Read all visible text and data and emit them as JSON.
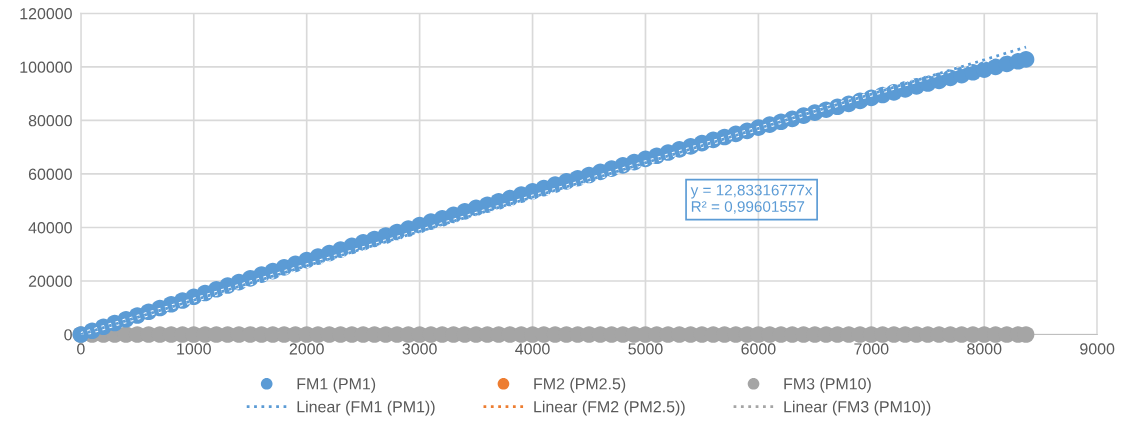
{
  "chart_data": {
    "type": "scatter",
    "x": [
      0,
      100,
      200,
      300,
      400,
      500,
      600,
      700,
      800,
      900,
      1000,
      1100,
      1200,
      1300,
      1400,
      1500,
      1600,
      1700,
      1800,
      1900,
      2000,
      2100,
      2200,
      2300,
      2400,
      2500,
      2600,
      2700,
      2800,
      2900,
      3000,
      3100,
      3200,
      3300,
      3400,
      3500,
      3600,
      3700,
      3800,
      3900,
      4000,
      4100,
      4200,
      4300,
      4400,
      4500,
      4600,
      4700,
      4800,
      4900,
      5000,
      5100,
      5200,
      5300,
      5400,
      5500,
      5600,
      5700,
      5800,
      5900,
      6000,
      6100,
      6200,
      6300,
      6400,
      6500,
      6600,
      6700,
      6800,
      6900,
      7000,
      7100,
      7200,
      7300,
      7400,
      7500,
      7600,
      7700,
      7800,
      7900,
      8000,
      8100,
      8200,
      8300,
      8370
    ],
    "series": [
      {
        "name": "FM1 (PM1)",
        "color": "#5b9bd5",
        "marker": "circle",
        "values": [
          0,
          1400,
          2900,
          4300,
          5700,
          7100,
          8500,
          9900,
          11300,
          12700,
          14100,
          15500,
          16900,
          18300,
          19600,
          21000,
          22400,
          23700,
          25100,
          26400,
          27800,
          29100,
          30400,
          31700,
          33100,
          34400,
          35700,
          37000,
          38300,
          39600,
          40900,
          42200,
          43400,
          44700,
          46000,
          47300,
          48500,
          49800,
          51000,
          52300,
          53500,
          54700,
          56000,
          57200,
          58400,
          59600,
          60800,
          62000,
          63200,
          64400,
          65600,
          66800,
          68000,
          69200,
          70300,
          71500,
          72700,
          73800,
          75000,
          76100,
          77300,
          78400,
          79500,
          80600,
          81800,
          82900,
          84000,
          85100,
          86200,
          87300,
          88400,
          89500,
          90500,
          91600,
          92700,
          93800,
          94800,
          95900,
          96900,
          98000,
          99000,
          100000,
          101100,
          102100,
          102800
        ]
      },
      {
        "name": "FM2 (PM2.5)",
        "color": "#ed7d31",
        "marker": "circle",
        "values": [
          null,
          null,
          null,
          null,
          null,
          null,
          null,
          null,
          null,
          null,
          null,
          null,
          null,
          null,
          null,
          null,
          null,
          null,
          null,
          null,
          null,
          null,
          null,
          null,
          null,
          null,
          null,
          null,
          null,
          null,
          null,
          null,
          null,
          null,
          null,
          null,
          null,
          null,
          null,
          null,
          null,
          null,
          null,
          null,
          null,
          null,
          null,
          null,
          null,
          null,
          null,
          null,
          null,
          null,
          null,
          null,
          null,
          null,
          null,
          null,
          null,
          null,
          null,
          null,
          null,
          null,
          null,
          null,
          null,
          null,
          null,
          null,
          null,
          null,
          null,
          null,
          null,
          null,
          null,
          null,
          null,
          null,
          null,
          null,
          null
        ]
      },
      {
        "name": "FM3 (PM10)",
        "color": "#a5a5a5",
        "marker": "circle",
        "values": [
          0,
          0,
          0,
          0,
          0,
          0,
          0,
          0,
          0,
          0,
          0,
          0,
          0,
          0,
          0,
          0,
          0,
          0,
          0,
          0,
          0,
          0,
          0,
          0,
          0,
          0,
          0,
          0,
          0,
          0,
          0,
          0,
          0,
          0,
          0,
          0,
          0,
          0,
          0,
          0,
          0,
          0,
          0,
          0,
          0,
          0,
          0,
          0,
          0,
          0,
          0,
          0,
          0,
          0,
          0,
          0,
          0,
          0,
          0,
          0,
          0,
          0,
          0,
          0,
          0,
          0,
          0,
          0,
          0,
          0,
          0,
          0,
          0,
          0,
          0,
          0,
          0,
          0,
          0,
          0,
          0,
          0,
          0,
          0,
          0
        ]
      },
      {
        "name": "Linear (FM1 (PM1))",
        "type": "line",
        "line_style": "dotted",
        "color": "#5b9bd5",
        "x": [
          0,
          8370
        ],
        "values": [
          0,
          107400
        ]
      },
      {
        "name": "Linear (FM2 (PM2.5))",
        "type": "line",
        "line_style": "dotted",
        "color": "#ed7d31",
        "values": [
          null,
          null,
          null,
          null,
          null,
          null,
          null,
          null,
          null,
          null,
          null,
          null,
          null,
          null,
          null,
          null,
          null,
          null,
          null,
          null,
          null,
          null,
          null,
          null,
          null,
          null,
          null,
          null,
          null,
          null,
          null,
          null,
          null,
          null,
          null,
          null,
          null,
          null,
          null,
          null,
          null,
          null,
          null,
          null,
          null,
          null,
          null,
          null,
          null,
          null,
          null,
          null,
          null,
          null,
          null,
          null,
          null,
          null,
          null,
          null,
          null,
          null,
          null,
          null,
          null,
          null,
          null,
          null,
          null,
          null,
          null,
          null,
          null,
          null,
          null,
          null,
          null,
          null,
          null,
          null,
          null,
          null,
          null,
          null,
          null
        ]
      },
      {
        "name": "Linear (FM3 (PM10))",
        "type": "line",
        "line_style": "dotted",
        "color": "#a5a5a5",
        "values": [
          null,
          null,
          null,
          null,
          null,
          null,
          null,
          null,
          null,
          null,
          null,
          null,
          null,
          null,
          null,
          null,
          null,
          null,
          null,
          null,
          null,
          null,
          null,
          null,
          null,
          null,
          null,
          null,
          null,
          null,
          null,
          null,
          null,
          null,
          null,
          null,
          null,
          null,
          null,
          null,
          null,
          null,
          null,
          null,
          null,
          null,
          null,
          null,
          null,
          null,
          null,
          null,
          null,
          null,
          null,
          null,
          null,
          null,
          null,
          null,
          null,
          null,
          null,
          null,
          null,
          null,
          null,
          null,
          null,
          null,
          null,
          null,
          null,
          null,
          null,
          null,
          null,
          null,
          null,
          null,
          null,
          null,
          null,
          null,
          null
        ]
      }
    ],
    "annotations": [
      "y = 12,83316777x\nR² = 0,99601557"
    ],
    "xlim": [
      0,
      9000
    ],
    "xticks": [
      0,
      1000,
      2000,
      3000,
      4000,
      5000,
      6000,
      7000,
      8000,
      9000
    ],
    "ylim": [
      0,
      120000
    ],
    "yticks": [
      0,
      20000,
      40000,
      60000,
      80000,
      100000,
      120000
    ],
    "grid": true,
    "legend": "bottom"
  }
}
